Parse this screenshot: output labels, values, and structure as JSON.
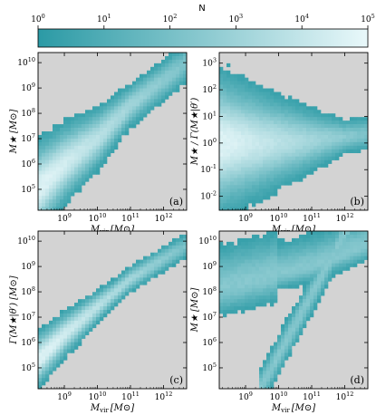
{
  "colorbar": {
    "title": "N",
    "ticks": [
      {
        "base": "10",
        "exp": "0"
      },
      {
        "base": "10",
        "exp": "1"
      },
      {
        "base": "10",
        "exp": "2"
      },
      {
        "base": "10",
        "exp": "3"
      },
      {
        "base": "10",
        "exp": "4"
      },
      {
        "base": "10",
        "exp": "5"
      }
    ],
    "scale": "log",
    "range": [
      1,
      100000
    ],
    "color_low": "#2b9aa5",
    "color_high": "#e9f8fa"
  },
  "style": {
    "panel_bg": "#d3d3d3"
  },
  "chart_data": [
    {
      "type": "heatmap",
      "panel_label": "(a)",
      "xlabel_sym": "M",
      "xlabel_sub": "vir",
      "xlabel_unit": "[M⊙]",
      "ylabel": "M★ [M⊙]",
      "x_scale": "log",
      "y_scale": "log",
      "xlim": [
        160000000.0,
        5000000000000.0
      ],
      "ylim": [
        15000.0,
        25000000000.0
      ],
      "xticks": [
        {
          "base": "10",
          "exp": "9"
        },
        {
          "base": "10",
          "exp": "10"
        },
        {
          "base": "10",
          "exp": "11"
        },
        {
          "base": "10",
          "exp": "12"
        }
      ],
      "yticks": [
        {
          "base": "10",
          "exp": "5"
        },
        {
          "base": "10",
          "exp": "6"
        },
        {
          "base": "10",
          "exp": "7"
        },
        {
          "base": "10",
          "exp": "8"
        },
        {
          "base": "10",
          "exp": "9"
        },
        {
          "base": "10",
          "exp": "10"
        }
      ],
      "ridge": [
        [
          8.2,
          5.0
        ],
        [
          9.0,
          6.0
        ],
        [
          10.0,
          7.0
        ],
        [
          11.0,
          8.3
        ],
        [
          12.0,
          9.3
        ],
        [
          12.6,
          9.9
        ]
      ],
      "spread": 0.7
    },
    {
      "type": "heatmap",
      "panel_label": "(b)",
      "xlabel_sym": "M",
      "xlabel_sub": "vir",
      "xlabel_unit": "[M⊙]",
      "ylabel": "M★ / Γ(M★|θ′)",
      "x_scale": "log",
      "y_scale": "log",
      "xlim": [
        160000000.0,
        5000000000000.0
      ],
      "ylim": [
        0.003,
        2500
      ],
      "xticks": [
        {
          "base": "10",
          "exp": "9"
        },
        {
          "base": "10",
          "exp": "10"
        },
        {
          "base": "10",
          "exp": "11"
        },
        {
          "base": "10",
          "exp": "12"
        }
      ],
      "yticks": [
        {
          "base": "10",
          "exp": "-2"
        },
        {
          "base": "10",
          "exp": "-1"
        },
        {
          "base": "10",
          "exp": "0"
        },
        {
          "base": "10",
          "exp": "1"
        },
        {
          "base": "10",
          "exp": "2"
        },
        {
          "base": "10",
          "exp": "3"
        }
      ],
      "ridge": [
        [
          8.2,
          0.0
        ],
        [
          9.5,
          0.0
        ],
        [
          11.0,
          0.1
        ],
        [
          12.4,
          0.3
        ]
      ],
      "spread": 1.1
    },
    {
      "type": "heatmap",
      "panel_label": "(c)",
      "xlabel_sym": "M",
      "xlabel_sub": "vir",
      "xlabel_unit": "[M⊙]",
      "ylabel": "Γ(M★|θ′) [M⊙]",
      "x_scale": "log",
      "y_scale": "log",
      "xlim": [
        160000000.0,
        5000000000000.0
      ],
      "ylim": [
        15000.0,
        25000000000.0
      ],
      "xticks": [
        {
          "base": "10",
          "exp": "9"
        },
        {
          "base": "10",
          "exp": "10"
        },
        {
          "base": "10",
          "exp": "11"
        },
        {
          "base": "10",
          "exp": "12"
        }
      ],
      "yticks": [
        {
          "base": "10",
          "exp": "5"
        },
        {
          "base": "10",
          "exp": "6"
        },
        {
          "base": "10",
          "exp": "7"
        },
        {
          "base": "10",
          "exp": "8"
        },
        {
          "base": "10",
          "exp": "9"
        },
        {
          "base": "10",
          "exp": "10"
        }
      ],
      "ridge": [
        [
          8.2,
          5.3
        ],
        [
          9.0,
          6.3
        ],
        [
          10.0,
          7.4
        ],
        [
          11.0,
          8.5
        ],
        [
          12.0,
          9.3
        ],
        [
          12.4,
          9.6
        ]
      ],
      "spread": 0.3
    },
    {
      "type": "heatmap",
      "panel_label": "(d)",
      "xlabel_sym": "M",
      "xlabel_sub": "vir",
      "xlabel_unit": "[M⊙]",
      "ylabel": "M★ [M⊙]",
      "x_scale": "log",
      "y_scale": "log",
      "xlim": [
        160000000.0,
        5000000000000.0
      ],
      "ylim": [
        15000.0,
        25000000000.0
      ],
      "xticks": [
        {
          "base": "10",
          "exp": "9"
        },
        {
          "base": "10",
          "exp": "10"
        },
        {
          "base": "10",
          "exp": "11"
        },
        {
          "base": "10",
          "exp": "12"
        }
      ],
      "yticks": [
        {
          "base": "10",
          "exp": "5"
        },
        {
          "base": "10",
          "exp": "6"
        },
        {
          "base": "10",
          "exp": "7"
        },
        {
          "base": "10",
          "exp": "8"
        },
        {
          "base": "10",
          "exp": "9"
        },
        {
          "base": "10",
          "exp": "10"
        }
      ],
      "ridge": [
        [
          8.2,
          8.1
        ],
        [
          10.0,
          8.7
        ],
        [
          11.0,
          9.0
        ],
        [
          12.6,
          9.8
        ]
      ],
      "ridge2": [
        [
          9.5,
          4.3
        ],
        [
          10.0,
          5.5
        ],
        [
          10.5,
          6.7
        ],
        [
          11.0,
          7.9
        ]
      ],
      "spread": 0.35
    }
  ]
}
